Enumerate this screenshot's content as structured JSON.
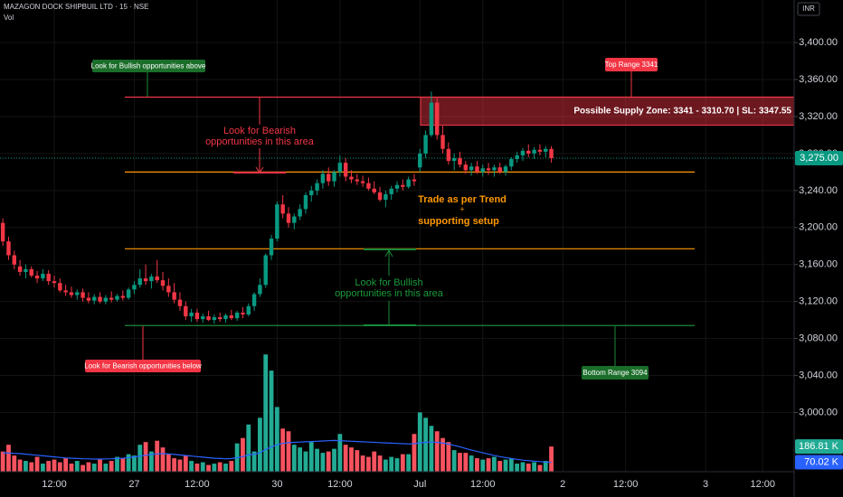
{
  "chart_data": {
    "type": "candlestick",
    "title": "MAZAGON DOCK SHIPBUIL LTD · 15 · NSE",
    "volume_title": "Vol",
    "currency": "INR",
    "up_color": "#089981",
    "down_color": "#f23645",
    "volume_up_color": "#22ab94",
    "volume_down_color": "#f7525f",
    "volume_ma_color": "#2962ff",
    "categories": [
      null,
      null,
      null,
      null,
      null,
      null,
      null,
      null,
      null,
      "12:00",
      null,
      null,
      null,
      null,
      null,
      null,
      null,
      null,
      null,
      null,
      null,
      null,
      null,
      "27",
      null,
      null,
      null,
      null,
      null,
      null,
      null,
      null,
      null,
      null,
      "12:00",
      null,
      null,
      null,
      null,
      null,
      null,
      null,
      null,
      null,
      null,
      null,
      null,
      null,
      "30",
      null,
      null,
      null,
      null,
      null,
      null,
      null,
      null,
      null,
      null,
      "12:00",
      null,
      null,
      null,
      null,
      null,
      null,
      null,
      null,
      null,
      null,
      null,
      null,
      null,
      "Jul",
      null,
      null,
      null,
      null,
      null,
      null,
      null,
      null,
      null,
      null,
      "12:00",
      null,
      null,
      null,
      null,
      null,
      null,
      null,
      null,
      null,
      null,
      null,
      null,
      null,
      "2",
      null,
      null,
      null,
      null,
      null,
      null,
      null,
      null,
      null,
      null,
      "12:00",
      null,
      null,
      null,
      null,
      null,
      null,
      null,
      null,
      null,
      null,
      null,
      null,
      null,
      "3",
      null,
      null,
      null,
      null,
      null,
      null,
      null,
      null,
      null,
      "12:00",
      null,
      null,
      null,
      null,
      null
    ],
    "open": [
      3205,
      3185,
      3170,
      3158,
      3152,
      3155,
      3148,
      3145,
      3150,
      3142,
      3140,
      3132,
      3130,
      3127,
      3130,
      3124,
      3121,
      3125,
      3120,
      3124,
      3122,
      3126,
      3124,
      3133,
      3138,
      3145,
      3142,
      3147,
      3143,
      3137,
      3130,
      3122,
      3115,
      3104,
      3108,
      3101,
      3104,
      3100,
      3103,
      3101,
      3105,
      3102,
      3108,
      3106,
      3115,
      3128,
      3138,
      3170,
      3188,
      3225,
      3215,
      3205,
      3212,
      3220,
      3235,
      3240,
      3248,
      3258,
      3250,
      3260,
      3270,
      3255,
      3252,
      3250,
      3248,
      3242,
      3238,
      3230,
      3236,
      3242,
      3246,
      3244,
      3252,
      3265,
      3280,
      3300,
      3335,
      3300,
      3285,
      3272,
      3275,
      3268,
      3262,
      3266,
      3260,
      3264,
      3262,
      3265,
      3260,
      3266,
      3274,
      3278,
      3283,
      3280,
      3284,
      3282,
      3285,
      null,
      null,
      null,
      null,
      null,
      null,
      null,
      null,
      null,
      null,
      null,
      null,
      null,
      null,
      null,
      null,
      null,
      null,
      null,
      null,
      null,
      null,
      null,
      null,
      null,
      null,
      null,
      null,
      null,
      null,
      null,
      null,
      null,
      null,
      null,
      null,
      null,
      null,
      null,
      null,
      null,
      null
    ],
    "high": [
      3210,
      3190,
      3175,
      3165,
      3160,
      3158,
      3153,
      3155,
      3154,
      3148,
      3145,
      3138,
      3136,
      3133,
      3134,
      3130,
      3128,
      3130,
      3127,
      3131,
      3128,
      3132,
      3135,
      3142,
      3155,
      3160,
      3150,
      3165,
      3152,
      3145,
      3140,
      3130,
      3120,
      3112,
      3112,
      3107,
      3110,
      3106,
      3108,
      3107,
      3111,
      3110,
      3114,
      3118,
      3130,
      3145,
      3172,
      3192,
      3228,
      3235,
      3222,
      3215,
      3225,
      3238,
      3245,
      3252,
      3262,
      3265,
      3262,
      3278,
      3275,
      3262,
      3258,
      3256,
      3254,
      3250,
      3244,
      3240,
      3245,
      3250,
      3252,
      3255,
      3258,
      3285,
      3305,
      3347,
      3340,
      3310,
      3292,
      3280,
      3282,
      3272,
      3270,
      3272,
      3268,
      3270,
      3268,
      3270,
      3268,
      3276,
      3282,
      3286,
      3290,
      3287,
      3290,
      3288,
      3288,
      null,
      null,
      null,
      null,
      null,
      null,
      null,
      null,
      null,
      null,
      null,
      null,
      null,
      null,
      null,
      null,
      null,
      null,
      null,
      null,
      null,
      null,
      null,
      null,
      null,
      null,
      null,
      null,
      null,
      null,
      null,
      null,
      null,
      null,
      null,
      null,
      null,
      null,
      null,
      null,
      null,
      null
    ],
    "low": [
      3180,
      3165,
      3155,
      3148,
      3145,
      3146,
      3140,
      3142,
      3138,
      3135,
      3130,
      3126,
      3124,
      3122,
      3120,
      3118,
      3117,
      3118,
      3117,
      3119,
      3120,
      3121,
      3122,
      3128,
      3135,
      3138,
      3134,
      3140,
      3132,
      3125,
      3118,
      3110,
      3100,
      3098,
      3098,
      3097,
      3099,
      3096,
      3098,
      3097,
      3100,
      3099,
      3102,
      3104,
      3110,
      3125,
      3135,
      3165,
      3185,
      3210,
      3200,
      3198,
      3208,
      3215,
      3228,
      3235,
      3242,
      3245,
      3244,
      3255,
      3250,
      3248,
      3246,
      3244,
      3240,
      3236,
      3228,
      3222,
      3230,
      3238,
      3240,
      3242,
      3245,
      3260,
      3275,
      3298,
      3295,
      3280,
      3268,
      3262,
      3265,
      3258,
      3256,
      3258,
      3255,
      3257,
      3255,
      3258,
      3256,
      3262,
      3270,
      3272,
      3276,
      3274,
      3278,
      3276,
      3270,
      null,
      null,
      null,
      null,
      null,
      null,
      null,
      null,
      null,
      null,
      null,
      null,
      null,
      null,
      null,
      null,
      null,
      null,
      null,
      null,
      null,
      null,
      null,
      null,
      null,
      null,
      null,
      null,
      null,
      null,
      null,
      null,
      null,
      null,
      null,
      null,
      null,
      null,
      null,
      null,
      null,
      null
    ],
    "close": [
      3185,
      3170,
      3160,
      3152,
      3155,
      3148,
      3145,
      3150,
      3142,
      3140,
      3132,
      3130,
      3127,
      3130,
      3124,
      3121,
      3125,
      3120,
      3124,
      3122,
      3126,
      3124,
      3133,
      3138,
      3145,
      3142,
      3147,
      3143,
      3137,
      3130,
      3122,
      3115,
      3104,
      3108,
      3101,
      3104,
      3100,
      3103,
      3101,
      3105,
      3102,
      3108,
      3106,
      3115,
      3128,
      3138,
      3170,
      3188,
      3225,
      3215,
      3205,
      3212,
      3220,
      3235,
      3240,
      3248,
      3258,
      3250,
      3260,
      3270,
      3255,
      3252,
      3250,
      3248,
      3242,
      3238,
      3230,
      3236,
      3242,
      3246,
      3244,
      3252,
      3250,
      3280,
      3300,
      3335,
      3300,
      3285,
      3272,
      3275,
      3268,
      3262,
      3266,
      3260,
      3264,
      3262,
      3265,
      3260,
      3266,
      3274,
      3278,
      3283,
      3280,
      3284,
      3282,
      3285,
      3275,
      null,
      null,
      null,
      null,
      null,
      null,
      null,
      null,
      null,
      null,
      null,
      null,
      null,
      null,
      null,
      null,
      null,
      null,
      null,
      null,
      null,
      null,
      null,
      null,
      null,
      null,
      null,
      null,
      null,
      null,
      null,
      null,
      null,
      null,
      null,
      null,
      null,
      null,
      null,
      null,
      null,
      null
    ],
    "volume": [
      150,
      200,
      120,
      90,
      80,
      70,
      110,
      60,
      80,
      90,
      70,
      100,
      60,
      80,
      50,
      70,
      60,
      90,
      60,
      80,
      110,
      100,
      130,
      120,
      200,
      220,
      150,
      230,
      180,
      130,
      100,
      90,
      120,
      80,
      60,
      70,
      50,
      60,
      70,
      60,
      80,
      210,
      250,
      350,
      150,
      400,
      870,
      750,
      480,
      320,
      300,
      200,
      180,
      150,
      220,
      170,
      140,
      150,
      170,
      280,
      200,
      180,
      160,
      120,
      110,
      150,
      120,
      90,
      110,
      100,
      130,
      130,
      280,
      440,
      400,
      340,
      300,
      250,
      220,
      160,
      140,
      140,
      120,
      100,
      90,
      100,
      110,
      80,
      90,
      100,
      60,
      70,
      60,
      70,
      50,
      80,
      186.81,
      null,
      null,
      null,
      null,
      null,
      null,
      null,
      null,
      null,
      null,
      null,
      null,
      null,
      null,
      null,
      null,
      null,
      null,
      null,
      null,
      null,
      null,
      null,
      null,
      null,
      null,
      null,
      null,
      null,
      null,
      null,
      null,
      null,
      null,
      null,
      null,
      null,
      null,
      null,
      null,
      null,
      null
    ],
    "volume_ma": [
      140,
      138,
      136,
      134,
      130,
      126,
      122,
      118,
      114,
      110,
      106,
      102,
      100,
      98,
      96,
      95,
      94,
      94,
      95,
      96,
      98,
      100,
      104,
      110,
      116,
      122,
      128,
      132,
      134,
      132,
      128,
      124,
      120,
      116,
      112,
      108,
      104,
      100,
      98,
      96,
      98,
      104,
      112,
      125,
      130,
      140,
      165,
      185,
      200,
      210,
      215,
      218,
      220,
      222,
      224,
      226,
      228,
      230,
      232,
      230,
      228,
      226,
      224,
      222,
      220,
      218,
      216,
      214,
      212,
      210,
      208,
      206,
      208,
      214,
      218,
      220,
      218,
      212,
      205,
      195,
      185,
      172,
      160,
      150,
      140,
      130,
      120,
      112,
      105,
      98,
      92,
      86,
      82,
      78,
      75,
      72,
      70.02,
      null,
      null,
      null,
      null,
      null,
      null,
      null,
      null,
      null,
      null,
      null,
      null,
      null,
      null,
      null,
      null,
      null,
      null,
      null,
      null,
      null,
      null,
      null,
      null,
      null,
      null,
      null,
      null,
      null,
      null,
      null,
      null,
      null,
      null,
      null,
      null,
      null,
      null,
      null,
      null,
      null,
      null
    ],
    "ylim": [
      2936,
      3446
    ],
    "volume_ylim": [
      0,
      3500
    ],
    "yticks": [
      {
        "value": 3000,
        "label": "3,000.00"
      },
      {
        "value": 3040,
        "label": "3,040.00"
      },
      {
        "value": 3080,
        "label": "3,080.00"
      },
      {
        "value": 3120,
        "label": "3,120.00"
      },
      {
        "value": 3160,
        "label": "3,160.00"
      },
      {
        "value": 3200,
        "label": "3,200.00"
      },
      {
        "value": 3240,
        "label": "3,240.00"
      },
      {
        "value": 3280,
        "label": "3,280.00"
      },
      {
        "value": 3320,
        "label": "3,320.00"
      },
      {
        "value": 3360,
        "label": "3,360.00"
      },
      {
        "value": 3400,
        "label": "3,400.00"
      }
    ],
    "grid": true,
    "price_line": {
      "value": 3275,
      "label": "3,275.00"
    },
    "volume_labels": [
      {
        "value": 186.81,
        "label": "186.81 K"
      },
      {
        "value": 70.02,
        "label": "70.02 K"
      }
    ],
    "levels": [
      {
        "value": 3341,
        "color": "#f23645"
      },
      {
        "value": 3260,
        "color": "#ff9800"
      },
      {
        "value": 3177,
        "color": "#ff9800"
      },
      {
        "value": 3094,
        "color": "#1b8a3a"
      }
    ],
    "supply_zone": [
      3341,
      3310.7
    ],
    "annotations": {
      "bullish_above": "Look for Bullish opportunities above",
      "bearish_below": "Look for Bearish opportunities below",
      "top_range": "Top Range 3341",
      "bottom_range": "Bottom Range 3094",
      "supply_zone": "Possible Supply Zone: 3341 - 3310.70 | SL: 3347.55",
      "bearish_area": [
        "Look for Bearish",
        "opportunities in this area"
      ],
      "bullish_area": [
        "Look for Bullish",
        "opportunities in this area"
      ],
      "trade": [
        "Trade as per Trend",
        "+",
        "supporting setup"
      ]
    }
  }
}
